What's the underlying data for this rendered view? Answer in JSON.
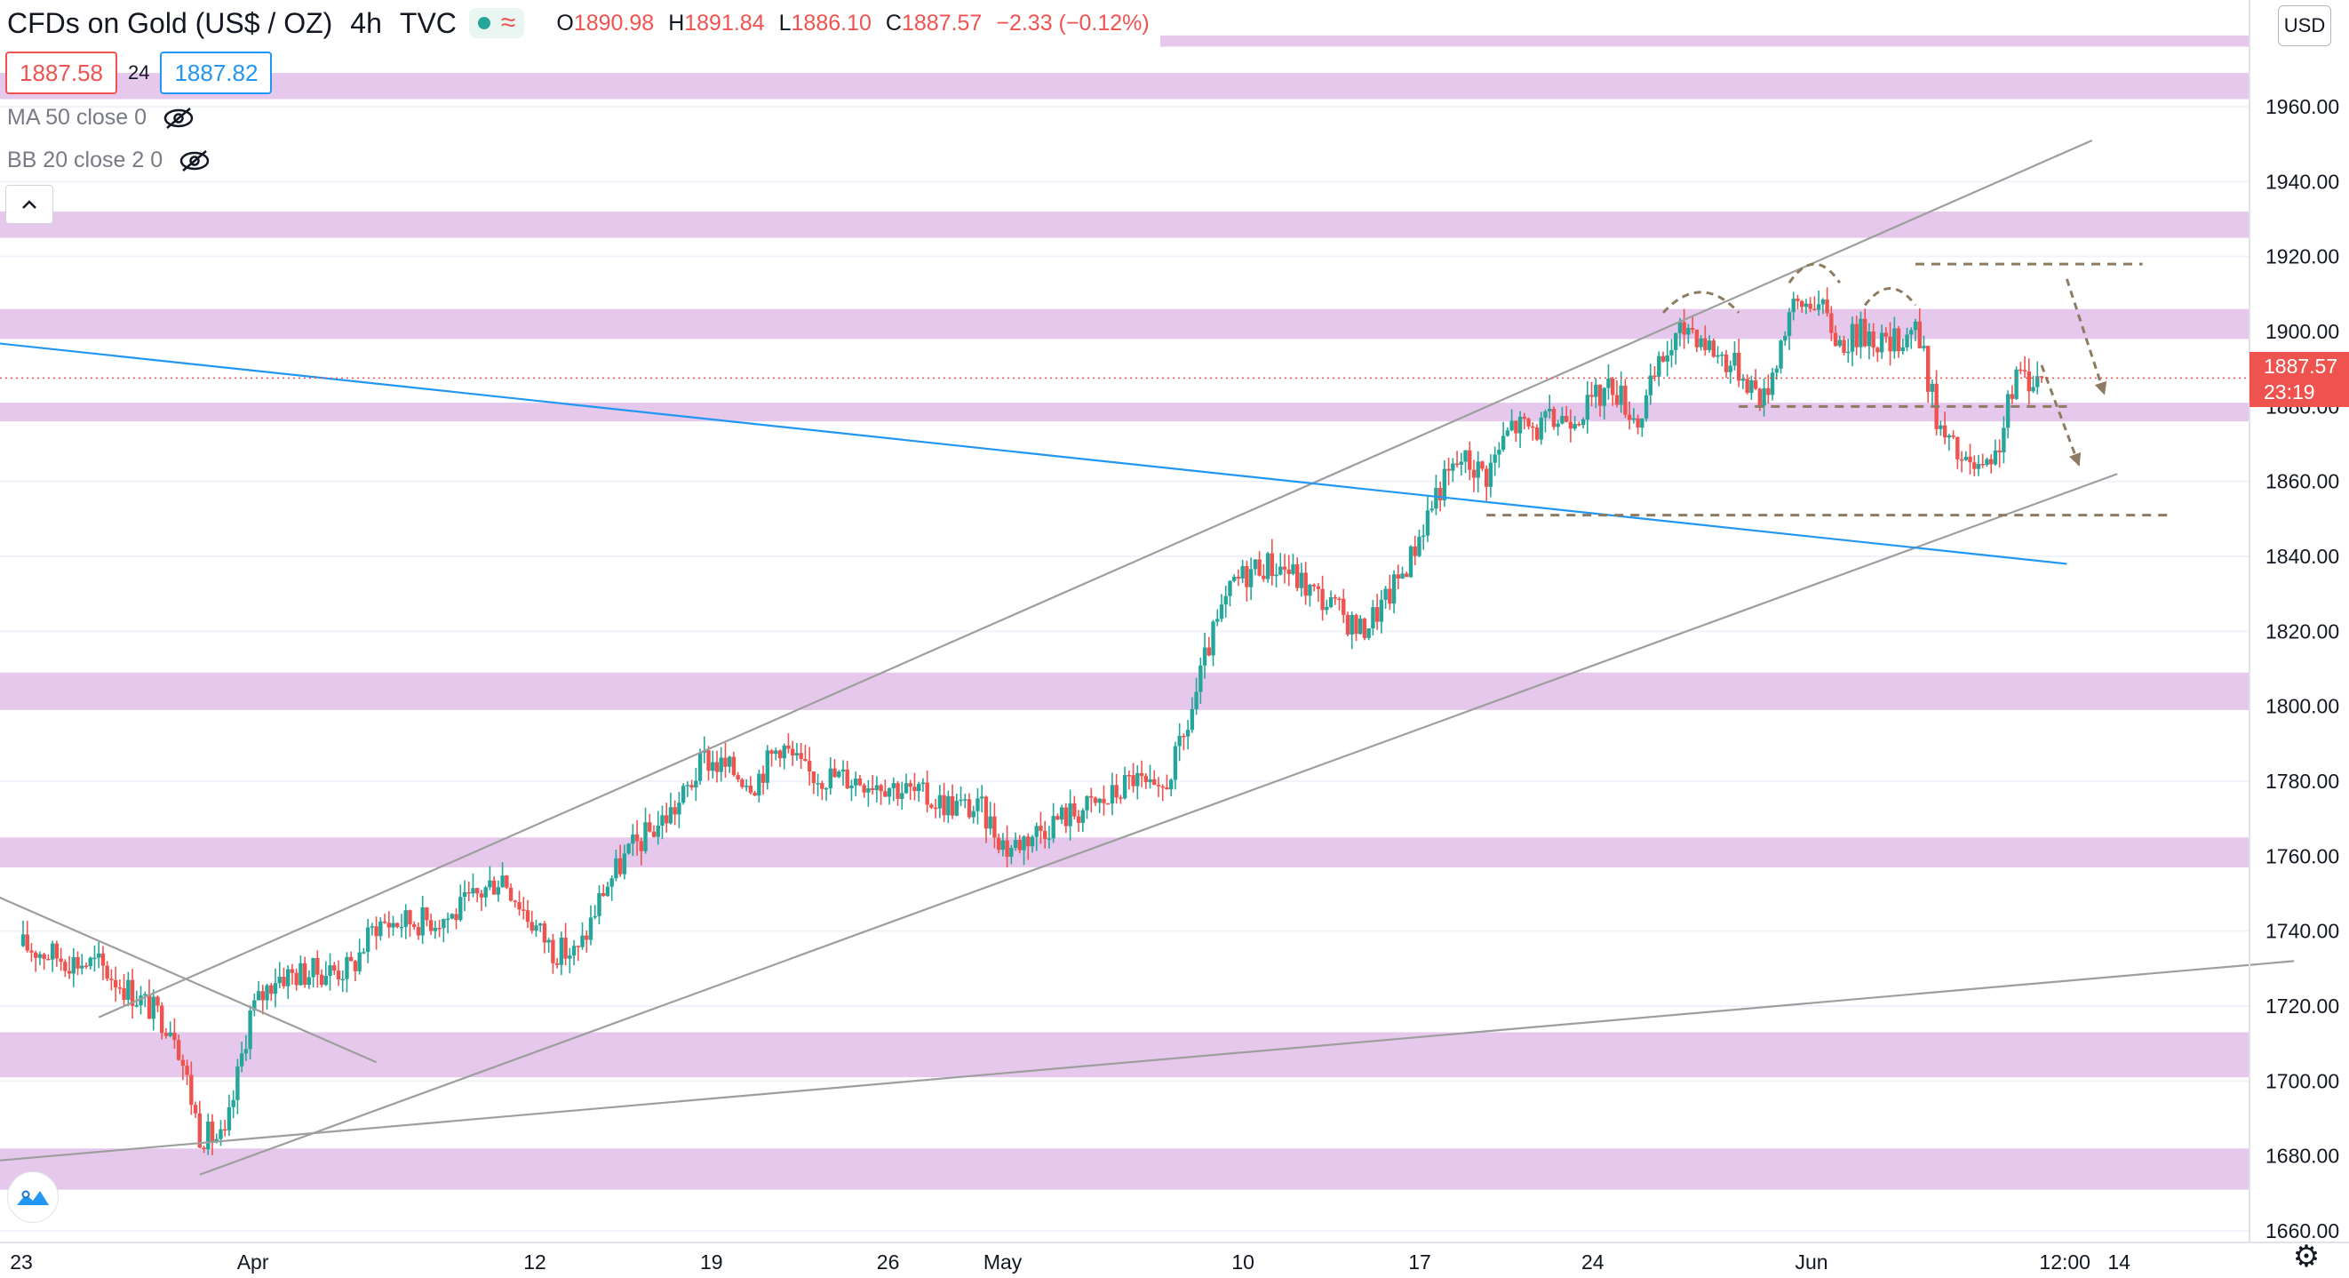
{
  "header": {
    "symbol": "CFDs on Gold (US$ / OZ)",
    "interval": "4h",
    "source": "TVC",
    "ohlc": {
      "open_label": "O",
      "open": "1890.98",
      "high_label": "H",
      "high": "1891.84",
      "low_label": "L",
      "low": "1886.10",
      "close_label": "C",
      "close": "1887.57",
      "change": "−2.33 (−0.12%)"
    }
  },
  "trade": {
    "sell": "1887.58",
    "spread": "24",
    "buy": "1887.82"
  },
  "indicators": [
    {
      "label": "MA 50 close 0",
      "icon": "eye-crossed-icon"
    },
    {
      "label": "BB 20 close 2 0",
      "icon": "eye-crossed-icon"
    }
  ],
  "controls": {
    "collapse_icon": "chevron-up-icon",
    "currency": "USD",
    "settings_icon": "gear-icon",
    "logo_icon": "tradingview-logo-icon"
  },
  "price_axis": {
    "ticks": [
      "1660.00",
      "1680.00",
      "1700.00",
      "1720.00",
      "1740.00",
      "1760.00",
      "1780.00",
      "1800.00",
      "1820.00",
      "1840.00",
      "1860.00",
      "1880.00",
      "1900.00",
      "1920.00",
      "1940.00",
      "1960.00"
    ],
    "current_price": "1887.57",
    "countdown": "23:19"
  },
  "time_axis": {
    "labels": [
      "23",
      "Apr",
      "12",
      "19",
      "26",
      "May",
      "10",
      "17",
      "24",
      "Jun",
      "12:00",
      "14"
    ]
  },
  "colors": {
    "up": "#26a69a",
    "down": "#ef5350",
    "zone": "#e1bee7",
    "trendline": "#9e9e9e",
    "blue_line": "#2196f3",
    "annotation": "#8d7b62"
  },
  "chart_data": {
    "type": "candlestick",
    "instrument": "CFDs on Gold (US$ / OZ)",
    "timeframe": "4h",
    "ylim": [
      1653,
      1976
    ],
    "x_range": [
      "2021-03-23",
      "2021-06-16"
    ],
    "resistance_support_zones": [
      [
        1671,
        1682
      ],
      [
        1701,
        1713
      ],
      [
        1757,
        1765
      ],
      [
        1799,
        1809
      ],
      [
        1876,
        1881
      ],
      [
        1898,
        1906
      ],
      [
        1925,
        1932
      ],
      [
        1962,
        1969
      ],
      [
        1976,
        1979
      ]
    ],
    "close_path": [
      [
        "2021-03-23",
        1736
      ],
      [
        "2021-03-25",
        1732
      ],
      [
        "2021-03-26",
        1731
      ],
      [
        "2021-03-29",
        1714
      ],
      [
        "2021-03-30",
        1686
      ],
      [
        "2021-03-31",
        1684
      ],
      [
        "2021-04-01",
        1718
      ],
      [
        "2021-04-02",
        1728
      ],
      [
        "2021-04-05",
        1730
      ],
      [
        "2021-04-06",
        1742
      ],
      [
        "2021-04-08",
        1743
      ],
      [
        "2021-04-09",
        1744
      ],
      [
        "2021-04-11",
        1755
      ],
      [
        "2021-04-12",
        1744
      ],
      [
        "2021-04-13",
        1735
      ],
      [
        "2021-04-14",
        1734
      ],
      [
        "2021-04-15",
        1751
      ],
      [
        "2021-04-16",
        1761
      ],
      [
        "2021-04-18",
        1774
      ],
      [
        "2021-04-19",
        1786
      ],
      [
        "2021-04-21",
        1780
      ],
      [
        "2021-04-22",
        1790
      ],
      [
        "2021-04-23",
        1782
      ],
      [
        "2021-04-26",
        1780
      ],
      [
        "2021-04-28",
        1775
      ],
      [
        "2021-04-30",
        1772
      ],
      [
        "2021-05-01",
        1762
      ],
      [
        "2021-05-03",
        1770
      ],
      [
        "2021-05-05",
        1775
      ],
      [
        "2021-05-06",
        1781
      ],
      [
        "2021-05-07",
        1775
      ],
      [
        "2021-05-08",
        1791
      ],
      [
        "2021-05-09",
        1816
      ],
      [
        "2021-05-10",
        1833
      ],
      [
        "2021-05-11",
        1838
      ],
      [
        "2021-05-12",
        1837
      ],
      [
        "2021-05-13",
        1831
      ],
      [
        "2021-05-14",
        1826
      ],
      [
        "2021-05-15",
        1820
      ],
      [
        "2021-05-16",
        1828
      ],
      [
        "2021-05-17",
        1840
      ],
      [
        "2021-05-18",
        1857
      ],
      [
        "2021-05-19",
        1866
      ],
      [
        "2021-05-20",
        1862
      ],
      [
        "2021-05-21",
        1875
      ],
      [
        "2021-05-22",
        1874
      ],
      [
        "2021-05-24",
        1880
      ],
      [
        "2021-05-25",
        1886
      ],
      [
        "2021-05-26",
        1876
      ],
      [
        "2021-05-27",
        1893
      ],
      [
        "2021-05-28",
        1902
      ],
      [
        "2021-05-29",
        1895
      ],
      [
        "2021-05-30",
        1890
      ],
      [
        "2021-05-31",
        1882
      ],
      [
        "2021-06-01",
        1905
      ],
      [
        "2021-06-02",
        1909
      ],
      [
        "2021-06-03",
        1897
      ],
      [
        "2021-06-04",
        1900
      ],
      [
        "2021-06-05",
        1896
      ],
      [
        "2021-06-06",
        1902
      ],
      [
        "2021-06-07",
        1873
      ],
      [
        "2021-06-08",
        1864
      ],
      [
        "2021-06-09",
        1862
      ],
      [
        "2021-06-10",
        1888
      ],
      [
        "2021-06-11",
        1887.57
      ]
    ],
    "trendlines": [
      {
        "name": "channel-upper",
        "from": [
          "2021-03-26",
          1717
        ],
        "to": [
          "2021-06-13",
          1951
        ]
      },
      {
        "name": "channel-lower",
        "from": [
          "2021-03-30",
          1675
        ],
        "to": [
          "2021-06-14",
          1862
        ]
      },
      {
        "name": "long-term-support",
        "from": [
          "2021-03-19",
          1677
        ],
        "to": [
          "2021-06-21",
          1732
        ]
      },
      {
        "name": "descending-line",
        "from": [
          "2021-03-19",
          1758
        ],
        "to": [
          "2021-04-06",
          1705
        ]
      },
      {
        "name": "blue-trendline",
        "from": [
          "2021-03-19",
          1899
        ],
        "to": [
          "2021-06-12",
          1838
        ]
      }
    ],
    "horizontal_levels": [
      {
        "value": 1918,
        "from": "2021-06-06",
        "to": "2021-06-15"
      },
      {
        "value": 1880,
        "from": "2021-05-30",
        "to": "2021-06-12"
      },
      {
        "value": 1851,
        "from": "2021-05-20",
        "to": "2021-06-16"
      }
    ],
    "current_price_line": 1887.57
  }
}
